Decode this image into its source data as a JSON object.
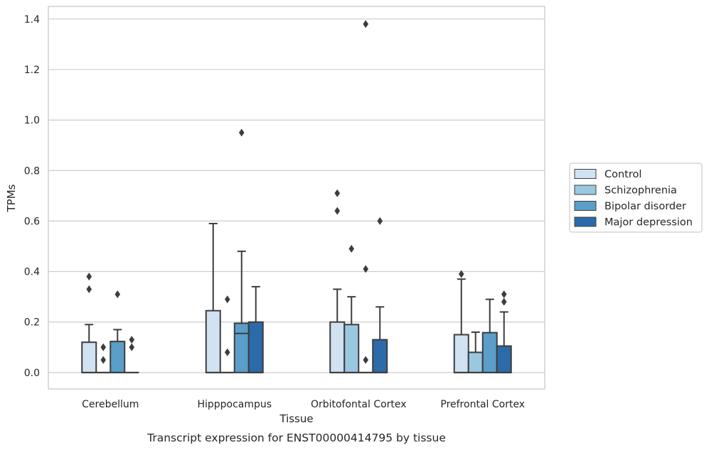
{
  "chart_data": {
    "type": "box",
    "caption": "Transcript expression for ENST00000414795 by tissue",
    "xlabel": "Tissue",
    "ylabel": "TPMs",
    "ylim": [
      -0.065,
      1.45
    ],
    "yticks": [
      0.0,
      0.2,
      0.4,
      0.6,
      0.8,
      1.0,
      1.2,
      1.4
    ],
    "ytick_labels": [
      "0.0",
      "0.2",
      "0.4",
      "0.6",
      "0.8",
      "1.0",
      "1.2",
      "1.4"
    ],
    "grid": "horizontal",
    "legend_position": "right",
    "categories": [
      "Cerebellum",
      "Hipppocampus",
      "Orbitofontal Cortex",
      "Prefrontal Cortex"
    ],
    "series": [
      {
        "name": "Control",
        "color": "#d1e2f2",
        "boxes": [
          {
            "q1": 0.0,
            "median": 0.0,
            "q3": 0.12,
            "whisker_low": 0.0,
            "whisker_high": 0.19,
            "outliers": [
              0.33,
              0.38
            ]
          },
          {
            "q1": 0.0,
            "median": 0.0,
            "q3": 0.245,
            "whisker_low": 0.0,
            "whisker_high": 0.59,
            "outliers": []
          },
          {
            "q1": 0.0,
            "median": 0.0,
            "q3": 0.2,
            "whisker_low": 0.0,
            "whisker_high": 0.33,
            "outliers": [
              0.64,
              0.71
            ]
          },
          {
            "q1": 0.0,
            "median": 0.0,
            "q3": 0.15,
            "whisker_low": 0.0,
            "whisker_high": 0.37,
            "outliers": [
              0.39
            ]
          }
        ]
      },
      {
        "name": "Schizophrenia",
        "color": "#9ac8e0",
        "boxes": [
          {
            "q1": 0.0,
            "median": 0.0,
            "q3": 0.0,
            "whisker_low": 0.0,
            "whisker_high": 0.0,
            "outliers": [
              0.05,
              0.1
            ]
          },
          {
            "q1": 0.0,
            "median": 0.0,
            "q3": 0.0,
            "whisker_low": 0.0,
            "whisker_high": 0.0,
            "outliers": [
              0.08,
              0.29
            ]
          },
          {
            "q1": 0.0,
            "median": 0.0,
            "q3": 0.19,
            "whisker_low": 0.0,
            "whisker_high": 0.3,
            "outliers": [
              0.49
            ]
          },
          {
            "q1": 0.0,
            "median": 0.0,
            "q3": 0.08,
            "whisker_low": 0.0,
            "whisker_high": 0.16,
            "outliers": []
          }
        ]
      },
      {
        "name": "Bipolar disorder",
        "color": "#5a9ec9",
        "boxes": [
          {
            "q1": 0.0,
            "median": 0.0,
            "q3": 0.123,
            "whisker_low": 0.0,
            "whisker_high": 0.17,
            "outliers": [
              0.31
            ]
          },
          {
            "q1": 0.0,
            "median": 0.155,
            "q3": 0.195,
            "whisker_low": 0.0,
            "whisker_high": 0.48,
            "outliers": [
              0.95
            ]
          },
          {
            "q1": 0.0,
            "median": 0.0,
            "q3": 0.0,
            "whisker_low": 0.0,
            "whisker_high": 0.0,
            "outliers": [
              0.05,
              0.41,
              1.38
            ]
          },
          {
            "q1": 0.0,
            "median": 0.0,
            "q3": 0.158,
            "whisker_low": 0.0,
            "whisker_high": 0.29,
            "outliers": []
          }
        ]
      },
      {
        "name": "Major depression",
        "color": "#2c6aa9",
        "boxes": [
          {
            "q1": 0.0,
            "median": 0.0,
            "q3": 0.0,
            "whisker_low": 0.0,
            "whisker_high": 0.0,
            "outliers": [
              0.1,
              0.13
            ]
          },
          {
            "q1": 0.0,
            "median": 0.0,
            "q3": 0.2,
            "whisker_low": 0.0,
            "whisker_high": 0.34,
            "outliers": []
          },
          {
            "q1": 0.0,
            "median": 0.0,
            "q3": 0.13,
            "whisker_low": 0.0,
            "whisker_high": 0.26,
            "outliers": [
              0.6
            ]
          },
          {
            "q1": 0.0,
            "median": 0.0,
            "q3": 0.105,
            "whisker_low": 0.0,
            "whisker_high": 0.24,
            "outliers": [
              0.28,
              0.31
            ]
          }
        ]
      }
    ]
  }
}
